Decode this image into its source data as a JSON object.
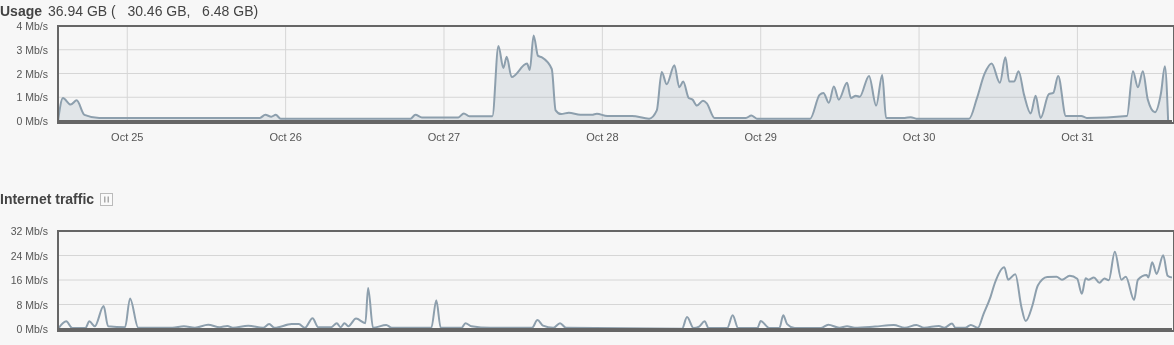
{
  "chart_data": [
    {
      "type": "area",
      "title": "Usage",
      "subtitle": "36.94 GB (   30.46 GB,   6.48 GB)",
      "grid": true,
      "color": "#8d9fad",
      "xlim": [
        "--10-24T13:30",
        "--10-31T14:20"
      ],
      "xticks": [
        {
          "value": "--10-25",
          "label": "Oct 25"
        },
        {
          "value": "--10-26",
          "label": "Oct 26"
        },
        {
          "value": "--10-27",
          "label": "Oct 27"
        },
        {
          "value": "--10-28",
          "label": "Oct 28"
        },
        {
          "value": "--10-29",
          "label": "Oct 29"
        },
        {
          "value": "--10-30",
          "label": "Oct 30"
        },
        {
          "value": "--10-31",
          "label": "Oct 31"
        }
      ],
      "ylim": [
        0,
        4
      ],
      "yticks": [
        {
          "value": 0,
          "label": "0 Mb/s"
        },
        {
          "value": 1,
          "label": "1 Mb/s"
        },
        {
          "value": 2,
          "label": "2 Mb/s"
        },
        {
          "value": 3,
          "label": "3 Mb/s"
        },
        {
          "value": 4,
          "label": "4 Mb/s"
        }
      ],
      "x": [
        "--10-24T13:30",
        "--10-24T14:15",
        "--10-24T15:25",
        "--10-24T16:20",
        "--10-24T17:30",
        "--10-24T19:45",
        "--10-25T20:05",
        "--10-25T20:55",
        "--10-25T21:50",
        "--10-25T22:30",
        "--10-25T23:15",
        "--10-26T18:55",
        "--10-26T19:40",
        "--10-26T20:40",
        "--10-27T02:10",
        "--10-27T03:00",
        "--10-27T03:50",
        "--10-27T07:20",
        "--10-27T08:15",
        "--10-27T09:00",
        "--10-27T09:30",
        "--10-27T10:15",
        "--10-27T12:35",
        "--10-27T13:00",
        "--10-27T13:35",
        "--10-27T14:15",
        "--10-27T14:50",
        "--10-27T16:20",
        "--10-27T16:55",
        "--10-27T17:45",
        "--10-27T18:55",
        "--10-27T20:40",
        "--10-27T22:25",
        "--10-27T23:10",
        "--10-28T00:45",
        "--10-28T04:30",
        "--10-28T07:05",
        "--10-28T08:15",
        "--10-28T09:00",
        "--10-28T09:45",
        "--10-28T10:55",
        "--10-28T11:40",
        "--10-28T12:15",
        "--10-28T13:05",
        "--10-28T13:40",
        "--10-28T14:20",
        "--10-28T15:15",
        "--10-28T15:50",
        "--10-28T17:00",
        "--10-28T21:45",
        "--10-28T22:35",
        "--10-28T23:25",
        "--10-29T07:30",
        "--10-29T08:55",
        "--10-29T09:30",
        "--10-29T10:20",
        "--10-29T11:05",
        "--10-29T11:50",
        "--10-29T13:05",
        "--10-29T13:40",
        "--10-29T14:25",
        "--10-29T15:00",
        "--10-29T16:25",
        "--10-29T17:30",
        "--10-29T18:25",
        "--10-29T19:00",
        "--10-29T21:50",
        "--10-29T22:45",
        "--10-29T23:35",
        "--10-30T07:35",
        "--10-30T08:45",
        "--10-30T09:55",
        "--10-30T11:00",
        "--10-30T12:15",
        "--10-30T13:05",
        "--10-30T13:40",
        "--10-30T14:25",
        "--10-30T15:05",
        "--10-30T15:55",
        "--10-30T16:55",
        "--10-30T17:40",
        "--10-30T18:25",
        "--10-30T19:40",
        "--10-30T20:20",
        "--10-30T21:05",
        "--10-30T22:15",
        "--10-31T00:35",
        "--10-31T01:25",
        "--10-31T07:30",
        "--10-31T08:25",
        "--10-31T09:10",
        "--10-31T09:55",
        "--10-31T10:40",
        "--10-31T11:45",
        "--10-31T12:40",
        "--10-31T13:15",
        "--10-31T13:45"
      ],
      "values": [
        0,
        0.97,
        0.69,
        0.87,
        0.26,
        0.13,
        0.13,
        0.26,
        0.18,
        0.26,
        0.1,
        0.1,
        0.26,
        0.15,
        0.15,
        0.32,
        0.2,
        0.2,
        3.16,
        2.23,
        2.71,
        1.85,
        2.42,
        2.15,
        3.6,
        2.74,
        2.68,
        2.19,
        0.45,
        0.29,
        0.35,
        0.26,
        0.26,
        0.31,
        0.21,
        0.21,
        0.1,
        0.45,
        2.06,
        1.55,
        2.35,
        1.42,
        1.66,
        0.97,
        0.9,
        0.65,
        0.85,
        0.74,
        0.13,
        0.13,
        0.23,
        0.1,
        0.1,
        1.1,
        1.18,
        0.77,
        1.45,
        0.9,
        1.61,
        0.97,
        1.06,
        1.02,
        1.9,
        0.65,
        1.94,
        0.13,
        0.13,
        0.16,
        0.1,
        0.1,
        0.94,
        1.98,
        2.42,
        1.61,
        2.68,
        1.66,
        1.66,
        2.1,
        1.1,
        0.32,
        1.06,
        0.13,
        1.13,
        1.18,
        1.9,
        0.21,
        0.21,
        0.13,
        0.21,
        2.1,
        1.42,
        2.1,
        0.9,
        0.37,
        1.18,
        2.31,
        0
      ]
    },
    {
      "type": "line",
      "title": "Internet traffic",
      "grid": "y",
      "tick_labels": "y",
      "color": "#8d9fad",
      "xlim": [
        "--10-24T13:30",
        "--10-31T14:20"
      ],
      "ylim": [
        0,
        32
      ],
      "yticks": [
        {
          "value": 0,
          "label": "0 Mb/s"
        },
        {
          "value": 8,
          "label": "8 Mb/s"
        },
        {
          "value": 16,
          "label": "16 Mb/s"
        },
        {
          "value": 24,
          "label": "24 Mb/s"
        },
        {
          "value": 32,
          "label": "32 Mb/s"
        }
      ],
      "x": [
        "--10-24T13:30",
        "--10-24T14:45",
        "--10-24T15:40",
        "--10-24T17:40",
        "--10-24T18:15",
        "--10-24T19:05",
        "--10-24T20:25",
        "--10-24T21:05",
        "--10-24T23:40",
        "--10-25T00:25",
        "--10-25T01:40",
        "--10-25T06:50",
        "--10-25T08:35",
        "--10-25T10:15",
        "--10-25T12:15",
        "--10-25T14:00",
        "--10-25T15:10",
        "--10-25T16:00",
        "--10-25T18:20",
        "--10-25T20:35",
        "--10-25T21:30",
        "--10-25T22:20",
        "--10-26T00:55",
        "--10-26T02:00",
        "--10-26T02:55",
        "--10-26T04:05",
        "--10-26T04:55",
        "--10-26T06:55",
        "--10-26T07:45",
        "--10-26T08:20",
        "--10-26T08:55",
        "--10-26T09:30",
        "--10-26T10:40",
        "--10-26T12:05",
        "--10-26T12:30",
        "--10-26T13:15",
        "--10-26T15:15",
        "--10-26T16:05",
        "--10-26T22:05",
        "--10-26T22:50",
        "--10-26T23:30",
        "--10-27T02:40",
        "--10-27T03:15",
        "--10-27T04:10",
        "--10-27T07:00",
        "--10-27T13:20",
        "--10-27T14:10",
        "--10-27T15:00",
        "--10-27T16:35",
        "--10-27T17:35",
        "--10-27T18:30",
        "--10-28T12:05",
        "--10-28T12:50",
        "--10-28T13:50",
        "--10-28T14:40",
        "--10-28T15:30",
        "--10-28T16:05",
        "--10-28T18:55",
        "--10-28T19:45",
        "--10-28T20:35",
        "--10-28T23:30",
        "--10-29T00:00",
        "--10-29T01:20",
        "--10-29T02:50",
        "--10-29T03:25",
        "--10-29T04:00",
        "--10-29T05:10",
        "--10-29T09:05",
        "--10-29T10:15",
        "--10-29T11:55",
        "--10-29T13:05",
        "--10-29T14:15",
        "--10-29T17:20",
        "--10-29T20:10",
        "--10-29T21:50",
        "--10-29T23:35",
        "--10-30T00:45",
        "--10-30T03:00",
        "--10-30T03:50",
        "--10-30T05:00",
        "--10-30T05:30",
        "--10-30T07:00",
        "--10-30T07:50",
        "--10-30T08:55",
        "--10-30T09:45",
        "--10-30T10:50",
        "--10-30T11:30",
        "--10-30T12:55",
        "--10-30T13:30",
        "--10-30T14:35",
        "--10-30T15:30",
        "--10-30T16:10",
        "--10-30T17:10",
        "--10-30T18:00",
        "--10-30T19:25",
        "--10-30T20:50",
        "--10-30T21:40",
        "--10-30T22:50",
        "--10-30T23:58",
        "--10-31T00:40",
        "--10-31T01:15",
        "--10-31T01:40",
        "--10-31T02:30",
        "--10-31T03:20",
        "--10-31T04:05",
        "--10-31T04:45",
        "--10-31T05:40",
        "--10-31T06:40",
        "--10-31T07:20",
        "--10-31T08:35",
        "--10-31T09:10",
        "--10-31T10:30",
        "--10-31T10:45",
        "--10-31T11:20",
        "--10-31T12:00",
        "--10-31T13:00",
        "--10-31T13:40",
        "--10-31T14:20"
      ],
      "values": [
        0,
        2.5,
        0.3,
        0.3,
        2.5,
        0.9,
        7.5,
        0.9,
        0.6,
        10,
        0.4,
        0.4,
        0.9,
        0.4,
        1.4,
        0.6,
        1,
        0.4,
        1.1,
        0.4,
        1.6,
        0.4,
        1.6,
        1.6,
        0.4,
        3.5,
        0.6,
        0.6,
        1.9,
        0.6,
        1.9,
        0.9,
        3.4,
        1.9,
        13.4,
        0.4,
        1.3,
        0.4,
        0.4,
        9.4,
        0.4,
        0.4,
        1.9,
        0.9,
        0.4,
        0.4,
        2.9,
        1.1,
        0.4,
        1.9,
        0.4,
        0.1,
        3.9,
        0.3,
        0.8,
        2.5,
        0.3,
        0.3,
        4.5,
        0.3,
        0.3,
        2.6,
        0.3,
        0.3,
        4.5,
        1.6,
        0.3,
        0.3,
        1.4,
        0.4,
        0.9,
        0.4,
        0.8,
        1.3,
        0.4,
        1.3,
        0.4,
        1,
        0.4,
        1.8,
        0.4,
        0.4,
        1.3,
        0.4,
        4.8,
        10.5,
        15.1,
        20.2,
        16.1,
        17.9,
        7.3,
        2.6,
        7.6,
        14.2,
        17,
        17.1,
        16.1,
        17.4,
        16.4,
        11.5,
        16.6,
        16.1,
        16.8,
        15.1,
        16.5,
        15.9,
        25.2,
        16.1,
        17.1,
        9.5,
        16.1,
        17.6,
        16.8,
        21.8,
        18,
        24.1,
        17.4,
        16.8
      ]
    }
  ]
}
